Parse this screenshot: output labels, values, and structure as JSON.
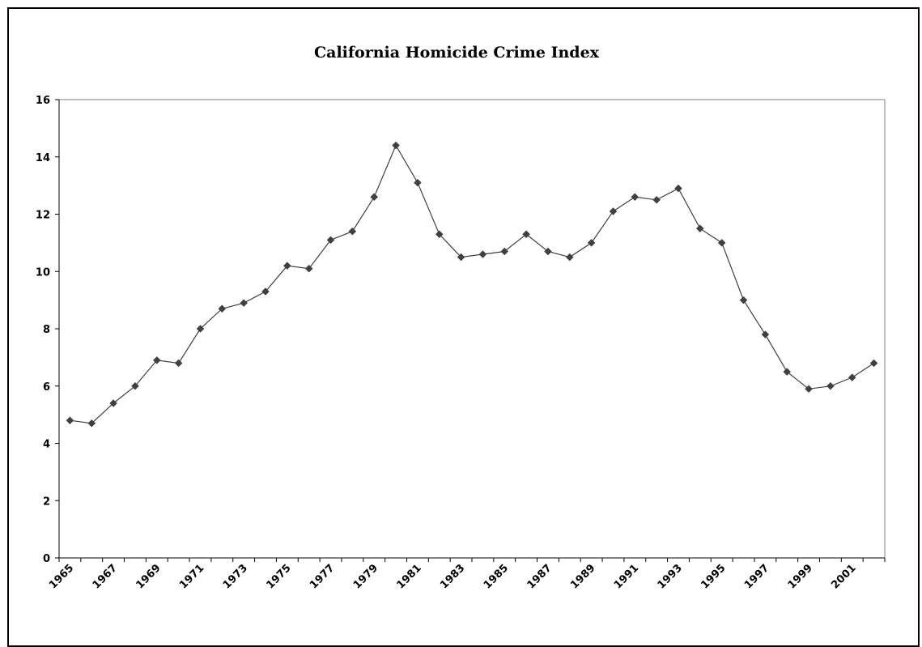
{
  "chart_data": {
    "type": "line",
    "title": "California Homicide Crime Index",
    "xlabel": "",
    "ylabel": "",
    "ylim": [
      0,
      16
    ],
    "yticks": [
      "0",
      "2",
      "4",
      "6",
      "8",
      "10",
      "12",
      "14",
      "16"
    ],
    "x": [
      1965,
      1966,
      1967,
      1968,
      1969,
      1970,
      1971,
      1972,
      1973,
      1974,
      1975,
      1976,
      1977,
      1978,
      1979,
      1980,
      1981,
      1982,
      1983,
      1984,
      1985,
      1986,
      1987,
      1988,
      1989,
      1990,
      1991,
      1992,
      1993,
      1994,
      1995,
      1996,
      1997,
      1998,
      1999,
      2000,
      2001,
      2002
    ],
    "xtick_labels": [
      "1965",
      "1967",
      "1969",
      "1971",
      "1973",
      "1975",
      "1977",
      "1979",
      "1981",
      "1983",
      "1985",
      "1987",
      "1989",
      "1991",
      "1993",
      "1995",
      "1997",
      "1999",
      "2001"
    ],
    "series": [
      {
        "name": "",
        "color": "#404040",
        "values": [
          4.8,
          4.7,
          5.4,
          6.0,
          6.9,
          6.8,
          8.0,
          8.7,
          8.9,
          9.3,
          10.2,
          10.1,
          11.1,
          11.4,
          12.6,
          14.4,
          13.1,
          11.3,
          10.5,
          10.6,
          10.7,
          11.3,
          10.7,
          10.5,
          11.0,
          12.1,
          12.6,
          12.5,
          12.9,
          11.5,
          11.0,
          9.0,
          7.8,
          6.5,
          5.9,
          6.0,
          6.3,
          6.8
        ]
      }
    ],
    "grid": false,
    "legend": "none",
    "marker": "diamond"
  }
}
